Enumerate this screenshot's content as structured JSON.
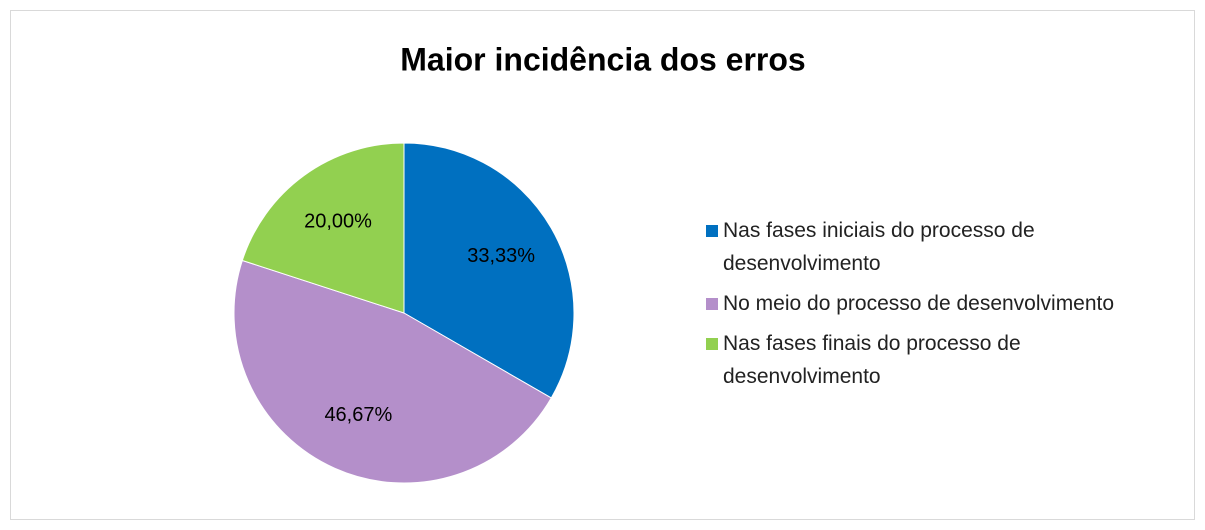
{
  "chart_data": {
    "type": "pie",
    "title": "Maior incidência dos erros",
    "categories": [
      "Nas fases iniciais do processo de desenvolvimento",
      "No meio do processo de desenvolvimento",
      "Nas fases finais do processo de desenvolvimento"
    ],
    "values": [
      33.33,
      46.67,
      20.0
    ],
    "value_labels": [
      "33,33%",
      "46,67%",
      "20,00%"
    ],
    "colors": [
      "#0070c0",
      "#b48fca",
      "#92d050"
    ],
    "legend": "right"
  }
}
